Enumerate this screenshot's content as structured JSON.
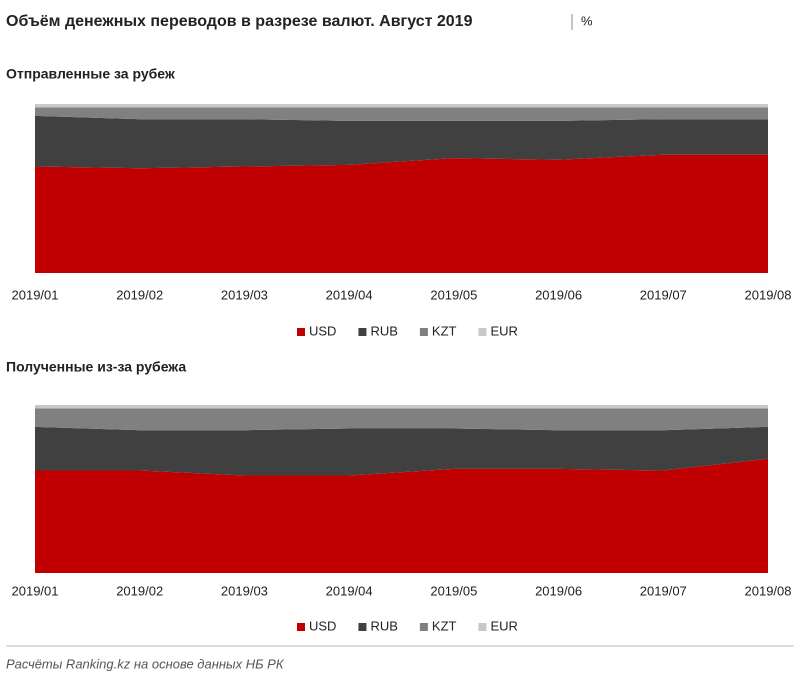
{
  "title": "Объём денежных переводов в разрезе валют. Август 2019",
  "unit": "%",
  "source": "Расчёты Ranking.kz на основе данных НБ РК",
  "chart_data": [
    {
      "type": "area",
      "stacked": true,
      "title": "Отправленные  за рубеж",
      "categories": [
        "2019/01",
        "2019/02",
        "2019/03",
        "2019/04",
        "2019/05",
        "2019/06",
        "2019/07",
        "2019/08"
      ],
      "series": [
        {
          "name": "USD",
          "color": "#c00000",
          "values": [
            63,
            62,
            63,
            64,
            68,
            67,
            70,
            70
          ]
        },
        {
          "name": "RUB",
          "color": "#404040",
          "values": [
            30,
            29,
            28,
            26,
            22,
            23,
            21,
            21
          ]
        },
        {
          "name": "KZT",
          "color": "#808080",
          "values": [
            5,
            7,
            7,
            8,
            8,
            8,
            7,
            7
          ]
        },
        {
          "name": "EUR",
          "color": "#c8c8c8",
          "values": [
            2,
            2,
            2,
            2,
            2,
            2,
            2,
            2
          ]
        }
      ]
    },
    {
      "type": "area",
      "stacked": true,
      "title": "Полученные  из-за рубежа",
      "categories": [
        "2019/01",
        "2019/02",
        "2019/03",
        "2019/04",
        "2019/05",
        "2019/06",
        "2019/07",
        "2019/08"
      ],
      "series": [
        {
          "name": "USD",
          "color": "#c00000",
          "values": [
            61,
            61,
            58,
            58,
            62,
            62,
            61,
            68
          ]
        },
        {
          "name": "RUB",
          "color": "#404040",
          "values": [
            26,
            24,
            27,
            28,
            24,
            23,
            24,
            19
          ]
        },
        {
          "name": "KZT",
          "color": "#808080",
          "values": [
            11,
            13,
            13,
            12,
            12,
            13,
            13,
            11
          ]
        },
        {
          "name": "EUR",
          "color": "#c8c8c8",
          "values": [
            2,
            2,
            2,
            2,
            2,
            2,
            2,
            2
          ]
        }
      ]
    }
  ]
}
